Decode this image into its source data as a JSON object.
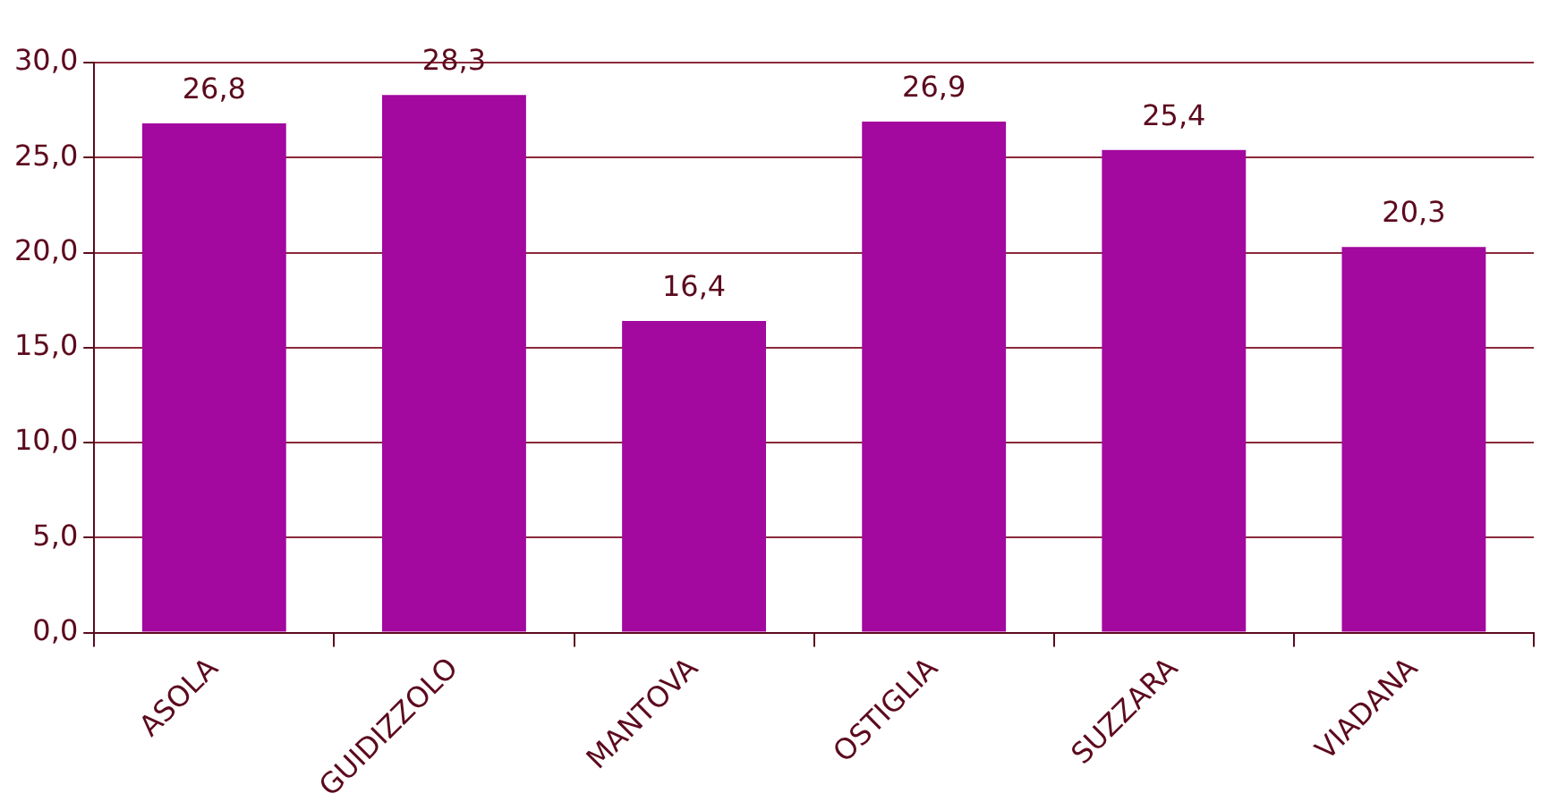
{
  "chart_data": {
    "type": "bar",
    "categories": [
      "ASOLA",
      "GUIDIZZOLO",
      "MANTOVA",
      "OSTIGLIA",
      "SUZZARA",
      "VIADANA"
    ],
    "values": [
      26.8,
      28.3,
      16.4,
      26.9,
      25.4,
      20.3
    ],
    "value_labels": [
      "26,8",
      "28,3",
      "16,4",
      "26,9",
      "25,4",
      "20,3"
    ],
    "color": "#a3089f",
    "ylim": [
      0,
      30
    ],
    "yticks": [
      {
        "value": 0,
        "label": "0,0"
      },
      {
        "value": 5,
        "label": "5,0"
      },
      {
        "value": 10,
        "label": "10,0"
      },
      {
        "value": 15,
        "label": "15,0"
      },
      {
        "value": 20,
        "label": "20,0"
      },
      {
        "value": 25,
        "label": "25,0"
      },
      {
        "value": 30,
        "label": "30,0"
      }
    ],
    "grid": "y",
    "legend": false
  }
}
